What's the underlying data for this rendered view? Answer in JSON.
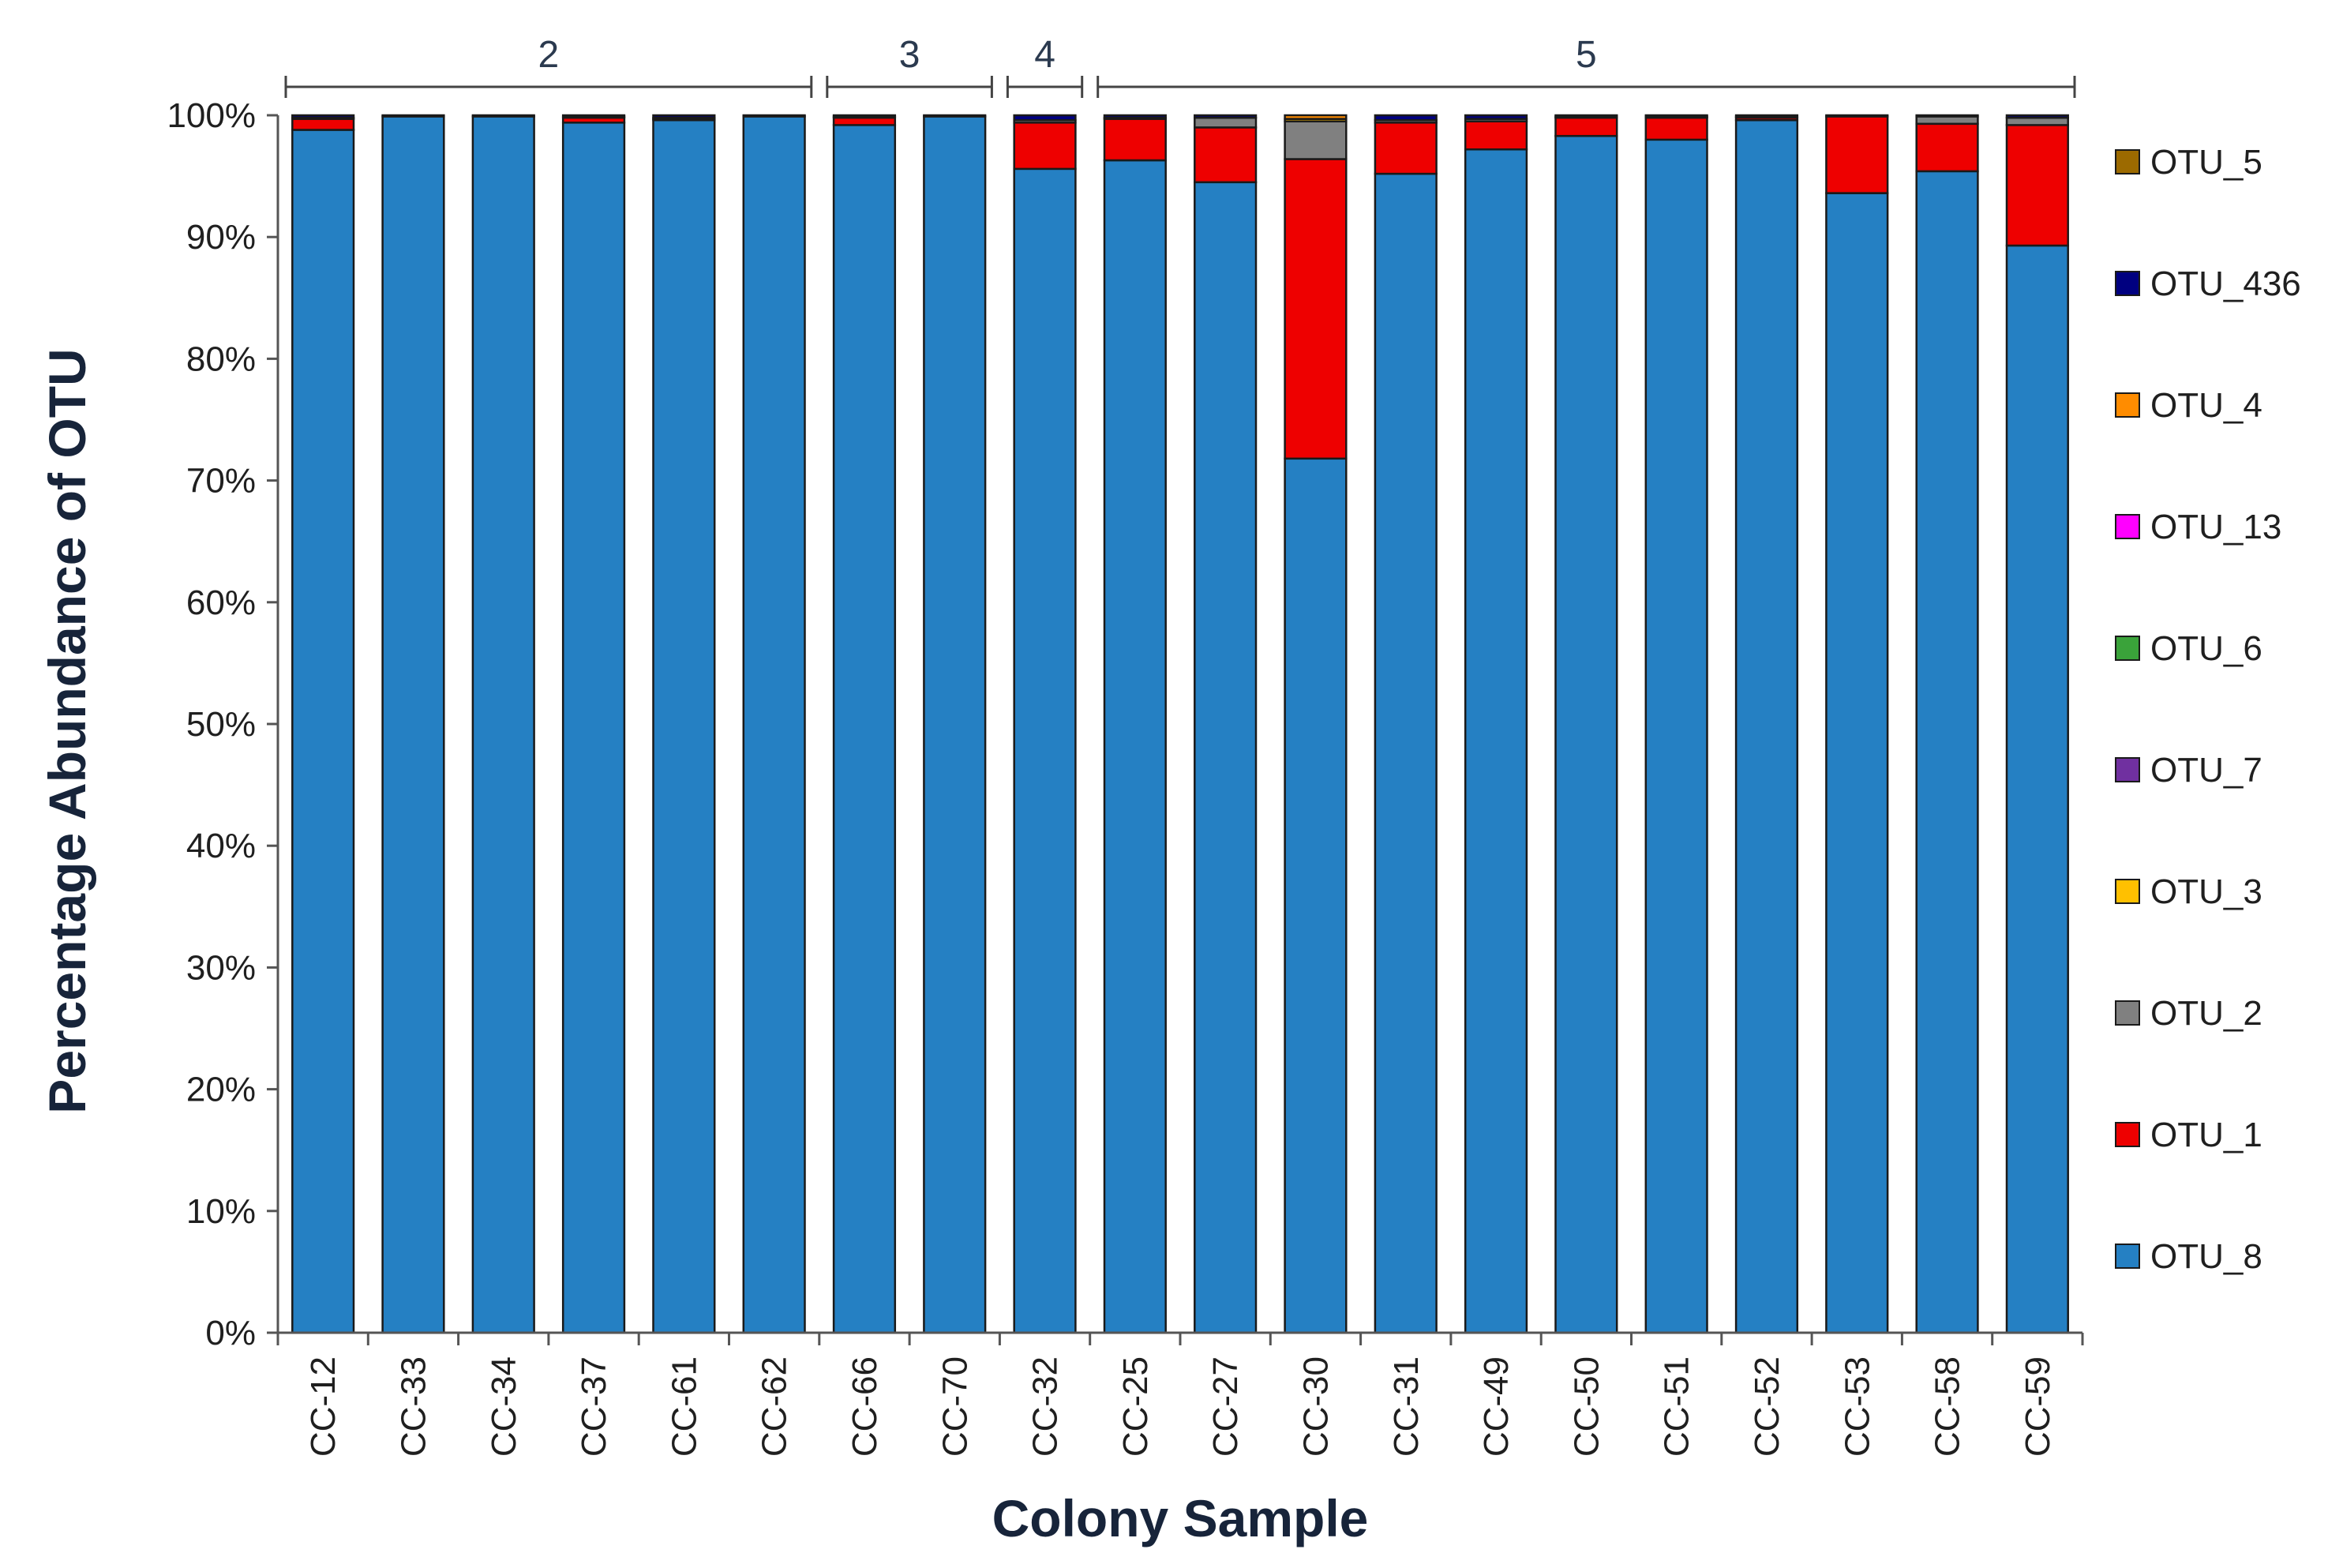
{
  "chart_data": {
    "type": "bar",
    "stacked": true,
    "title": "",
    "xlabel": "Colony Sample",
    "ylabel": "Percentage Abundance of OTU",
    "ylim": [
      0,
      100
    ],
    "y_ticks": [
      "0%",
      "10%",
      "20%",
      "30%",
      "40%",
      "50%",
      "60%",
      "70%",
      "80%",
      "90%",
      "100%"
    ],
    "grid": false,
    "legend_position": "right",
    "categories": [
      "CC-12",
      "CC-33",
      "CC-34",
      "CC-37",
      "CC-61",
      "CC-62",
      "CC-66",
      "CC-70",
      "CC-32",
      "CC-25",
      "CC-27",
      "CC-30",
      "CC-31",
      "CC-49",
      "CC-50",
      "CC-51",
      "CC-52",
      "CC-53",
      "CC-58",
      "CC-59"
    ],
    "groups": [
      {
        "label": "2",
        "start": "CC-12",
        "end": "CC-62"
      },
      {
        "label": "3",
        "start": "CC-66",
        "end": "CC-70"
      },
      {
        "label": "4",
        "start": "CC-32",
        "end": "CC-32"
      },
      {
        "label": "5",
        "start": "CC-25",
        "end": "CC-59"
      }
    ],
    "series": [
      {
        "name": "OTU_8",
        "color": "#2580c3",
        "values": [
          98.8,
          99.9,
          99.9,
          99.4,
          99.6,
          99.9,
          99.2,
          99.9,
          95.6,
          96.3,
          94.5,
          71.8,
          95.2,
          97.2,
          98.3,
          98.0,
          99.6,
          93.6,
          95.4,
          89.3
        ]
      },
      {
        "name": "OTU_1",
        "color": "#ee0000",
        "values": [
          0.9,
          0.0,
          0.0,
          0.4,
          0.1,
          0.0,
          0.6,
          0.0,
          3.8,
          3.4,
          4.5,
          24.6,
          4.2,
          2.3,
          1.5,
          1.8,
          0.2,
          6.3,
          3.9,
          9.9
        ]
      },
      {
        "name": "OTU_2",
        "color": "#808080",
        "values": [
          0.1,
          0.0,
          0.0,
          0.1,
          0.1,
          0.0,
          0.1,
          0.0,
          0.2,
          0.1,
          0.8,
          3.1,
          0.2,
          0.2,
          0.1,
          0.1,
          0.1,
          0.1,
          0.6,
          0.6
        ]
      },
      {
        "name": "OTU_3",
        "color": "#ffc000",
        "values": [
          0,
          0,
          0,
          0,
          0,
          0,
          0,
          0,
          0,
          0,
          0,
          0.2,
          0,
          0,
          0,
          0,
          0,
          0,
          0,
          0
        ]
      },
      {
        "name": "OTU_7",
        "color": "#7030a0",
        "values": [
          0,
          0,
          0,
          0,
          0,
          0,
          0,
          0,
          0,
          0,
          0,
          0,
          0,
          0,
          0,
          0,
          0,
          0,
          0,
          0
        ]
      },
      {
        "name": "OTU_6",
        "color": "#3aa33a",
        "values": [
          0,
          0,
          0,
          0,
          0,
          0,
          0,
          0,
          0,
          0,
          0,
          0,
          0,
          0,
          0,
          0,
          0,
          0,
          0,
          0
        ]
      },
      {
        "name": "OTU_13",
        "color": "#ff00ff",
        "values": [
          0,
          0,
          0,
          0,
          0,
          0,
          0,
          0,
          0,
          0,
          0,
          0,
          0,
          0,
          0,
          0,
          0,
          0,
          0,
          0
        ]
      },
      {
        "name": "OTU_4",
        "color": "#ff8c00",
        "values": [
          0,
          0,
          0,
          0,
          0,
          0,
          0,
          0,
          0,
          0,
          0,
          0.3,
          0,
          0,
          0,
          0,
          0,
          0,
          0,
          0
        ]
      },
      {
        "name": "OTU_436",
        "color": "#000080",
        "values": [
          0.2,
          0.1,
          0.1,
          0.1,
          0.2,
          0.1,
          0.1,
          0.1,
          0.4,
          0.2,
          0.2,
          0,
          0.4,
          0.3,
          0.1,
          0.1,
          0.1,
          0,
          0.1,
          0.2
        ]
      },
      {
        "name": "OTU_5",
        "color": "#9c6a00",
        "values": [
          0,
          0,
          0,
          0,
          0,
          0,
          0,
          0,
          0,
          0,
          0,
          0,
          0,
          0,
          0,
          0,
          0,
          0,
          0,
          0
        ]
      }
    ],
    "legend_order": [
      "OTU_5",
      "OTU_436",
      "OTU_4",
      "OTU_13",
      "OTU_6",
      "OTU_7",
      "OTU_3",
      "OTU_2",
      "OTU_1",
      "OTU_8"
    ]
  }
}
